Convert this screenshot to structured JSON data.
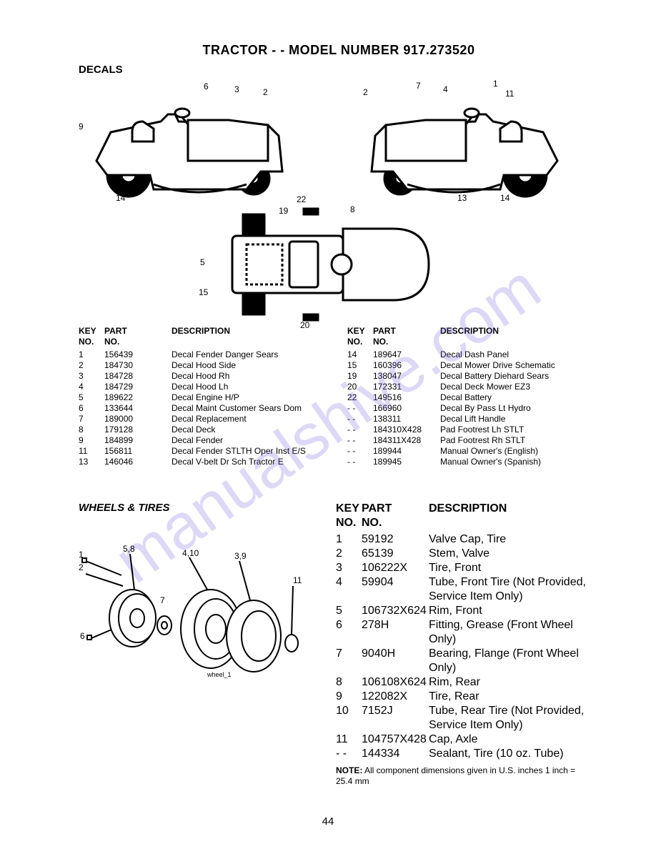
{
  "title": "TRACTOR - - MODEL NUMBER 917.273520",
  "section1": "DECALS",
  "section2": "WHEELS & TIRES",
  "headers": {
    "key": "KEY\nNO.",
    "part": "PART\nNO.",
    "desc": "DESCRIPTION"
  },
  "decals_left": [
    {
      "k": "1",
      "p": "156439",
      "d": "Decal Fender Danger Sears"
    },
    {
      "k": "2",
      "p": "184730",
      "d": "Decal Hood Side"
    },
    {
      "k": "3",
      "p": "184728",
      "d": "Decal Hood Rh"
    },
    {
      "k": "4",
      "p": "184729",
      "d": "Decal Hood Lh"
    },
    {
      "k": "5",
      "p": "189622",
      "d": "Decal Engine H/P"
    },
    {
      "k": "6",
      "p": "133644",
      "d": "Decal Maint Customer Sears Dom"
    },
    {
      "k": "7",
      "p": "189000",
      "d": "Decal Replacement"
    },
    {
      "k": "8",
      "p": "179128",
      "d": "Decal Deck"
    },
    {
      "k": "9",
      "p": "184899",
      "d": "Decal Fender"
    },
    {
      "k": "11",
      "p": "156811",
      "d": "Decal Fender STLTH Oper Inst E/S"
    },
    {
      "k": "13",
      "p": "146046",
      "d": "Decal V-belt Dr Sch Tractor E"
    }
  ],
  "decals_right": [
    {
      "k": "14",
      "p": "189647",
      "d": "Decal Dash Panel"
    },
    {
      "k": "15",
      "p": "160396",
      "d": "Decal Mower Drive Schematic"
    },
    {
      "k": "19",
      "p": "138047",
      "d": "Decal Battery Diehard Sears"
    },
    {
      "k": "20",
      "p": "172331",
      "d": "Decal Deck Mower EZ3"
    },
    {
      "k": "22",
      "p": "149516",
      "d": "Decal Battery"
    },
    {
      "k": "- -",
      "p": "166960",
      "d": "Decal By Pass Lt Hydro"
    },
    {
      "k": "- -",
      "p": "138311",
      "d": "Decal Lift Handle"
    },
    {
      "k": "- -",
      "p": "184310X428",
      "d": "Pad Footrest Lh STLT"
    },
    {
      "k": "- -",
      "p": "184311X428",
      "d": "Pad Footrest Rh STLT"
    },
    {
      "k": "- -",
      "p": "189944",
      "d": "Manual Owner's (English)"
    },
    {
      "k": "- -",
      "p": "189945",
      "d": "Manual Owner's (Spanish)"
    }
  ],
  "wheels": [
    {
      "k": "1",
      "p": "59192",
      "d": "Valve Cap, Tire"
    },
    {
      "k": "2",
      "p": "65139",
      "d": "Stem, Valve"
    },
    {
      "k": "3",
      "p": "106222X",
      "d": "Tire, Front"
    },
    {
      "k": "4",
      "p": "59904",
      "d": "Tube, Front Tire (Not Provided, Service Item Only)"
    },
    {
      "k": "5",
      "p": "106732X624",
      "d": "Rim, Front"
    },
    {
      "k": "6",
      "p": "278H",
      "d": "Fitting, Grease (Front Wheel Only)"
    },
    {
      "k": "7",
      "p": "9040H",
      "d": "Bearing, Flange (Front Wheel Only)"
    },
    {
      "k": "8",
      "p": "106108X624",
      "d": "Rim, Rear"
    },
    {
      "k": "9",
      "p": "122082X",
      "d": "Tire, Rear"
    },
    {
      "k": "10",
      "p": "7152J",
      "d": "Tube, Rear Tire (Not Provided, Service Item Only)"
    },
    {
      "k": "11",
      "p": "104757X428",
      "d": "Cap, Axle"
    },
    {
      "k": "- -",
      "p": "144334",
      "d": "Sealant, Tire (10 oz. Tube)"
    }
  ],
  "note_label": "NOTE:",
  "note_text": " All component dimensions given in U.S. inches 1 inch = 25.4 mm",
  "page_number": "44",
  "watermark": "manualshive.com",
  "wheel_caption": "wheel_1",
  "callouts_top": {
    "left": [
      "9",
      "14",
      "6",
      "3",
      "2",
      "22",
      "19",
      "8"
    ],
    "right": [
      "2",
      "7",
      "4",
      "1",
      "11",
      "13",
      "14"
    ],
    "mid": [
      "5",
      "15",
      "20"
    ]
  },
  "callouts_wheels": [
    "1",
    "2",
    "5,8",
    "6",
    "7",
    "4,10",
    "3,9",
    "11"
  ],
  "colors": {
    "text": "#000000",
    "bg": "#ffffff",
    "wm": "rgba(120,100,220,0.25)"
  }
}
